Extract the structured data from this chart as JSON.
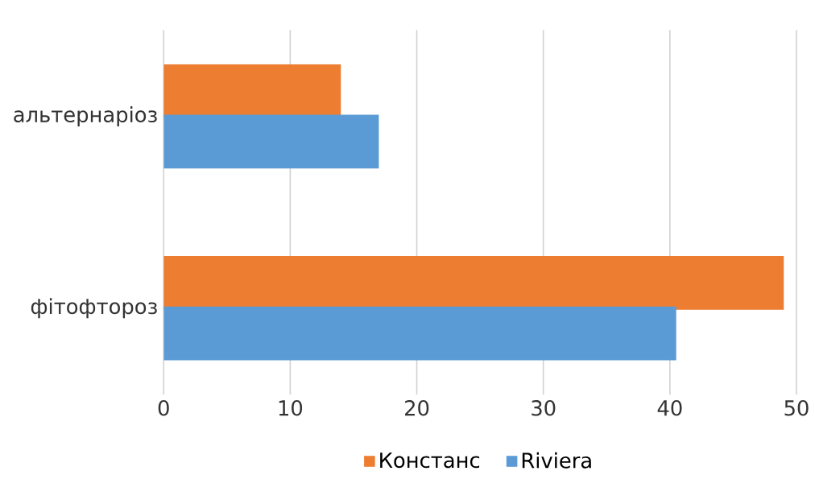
{
  "chart_data": {
    "type": "bar",
    "orientation": "horizontal",
    "categories": [
      "альтернаріоз",
      "фітофтороз"
    ],
    "series": [
      {
        "name": "Констанс",
        "color": "#ed7d31",
        "values": [
          14,
          49
        ]
      },
      {
        "name": "Riviera",
        "color": "#5b9bd5",
        "values": [
          17,
          40.5
        ]
      }
    ],
    "xlim": [
      0,
      50
    ],
    "xticks": [
      0,
      10,
      20,
      30,
      40,
      50
    ],
    "grid": "x",
    "legend": "bottom"
  }
}
